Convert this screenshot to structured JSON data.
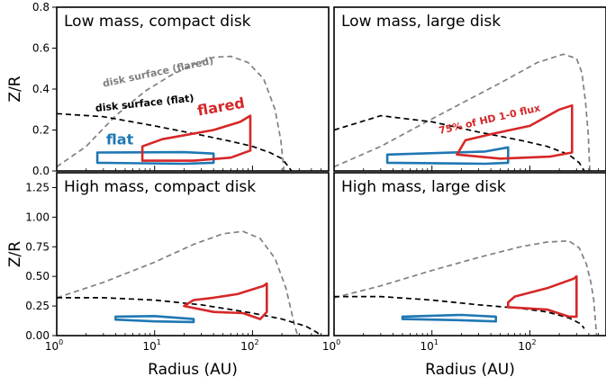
{
  "chart_data": {
    "type": "line",
    "xscale": "log",
    "xlim": [
      1,
      600
    ],
    "xlabel": "Radius (AU)",
    "ylabel": "Z/R",
    "x_ticks": [
      "10",
      "10",
      "10"
    ],
    "x_tick_exponents": [
      "0",
      "1",
      "2"
    ],
    "panels": [
      {
        "title": "Low mass, compact disk",
        "ylim": [
          0,
          0.8
        ],
        "y_ticks": [
          "0.0",
          "0.2",
          "0.4",
          "0.6",
          "0.8"
        ],
        "series": [
          {
            "color": "#808080",
            "dash": true,
            "x": [
              1,
              2,
              4,
              8,
              15,
              25,
              40,
              60,
              90,
              130,
              170,
              195,
              210
            ],
            "y": [
              0.02,
              0.12,
              0.27,
              0.39,
              0.47,
              0.52,
              0.555,
              0.56,
              0.53,
              0.45,
              0.3,
              0.15,
              0.0
            ]
          },
          {
            "color": "#000000",
            "dash": true,
            "x": [
              1,
              3,
              10,
              30,
              60,
              100,
              150,
              200,
              230,
              250
            ],
            "y": [
              0.28,
              0.265,
              0.22,
              0.175,
              0.145,
              0.12,
              0.09,
              0.06,
              0.025,
              0.0
            ]
          },
          {
            "color": "#1f77b4",
            "closed": true,
            "x": [
              2.6,
              20,
              40,
              40,
              20,
              2.6
            ],
            "y": [
              0.09,
              0.092,
              0.085,
              0.04,
              0.035,
              0.04
            ]
          },
          {
            "color": "#d62728",
            "closed": true,
            "x": [
              7.5,
              12,
              40,
              75,
              95,
              95,
              60,
              25,
              7.5
            ],
            "y": [
              0.12,
              0.155,
              0.2,
              0.24,
              0.27,
              0.1,
              0.065,
              0.05,
              0.05
            ]
          }
        ],
        "annotations": [
          {
            "text": "disk surface (flared)",
            "color": "#808080",
            "x": 3.0,
            "y": 0.41,
            "rotation": -12
          },
          {
            "text": "disk surface (flat)",
            "color": "#000000",
            "x": 2.5,
            "y": 0.29,
            "rotation": -6
          },
          {
            "text": "flat",
            "color": "#1f77b4",
            "x": 3.2,
            "y": 0.13,
            "rotation": 0
          },
          {
            "text": "flared",
            "color": "#d62728",
            "x": 28,
            "y": 0.27,
            "rotation": -10
          }
        ]
      },
      {
        "title": "Low mass, large disk",
        "ylim": [
          0,
          0.8
        ],
        "series": [
          {
            "color": "#808080",
            "dash": true,
            "x": [
              1,
              3,
              8,
              20,
              50,
              120,
              220,
              300,
              340,
              370,
              395,
              410
            ],
            "y": [
              0.02,
              0.12,
              0.23,
              0.33,
              0.43,
              0.53,
              0.57,
              0.55,
              0.48,
              0.34,
              0.18,
              0.0
            ]
          },
          {
            "color": "#000000",
            "dash": true,
            "x": [
              1,
              3,
              10,
              30,
              80,
              150,
              250,
              320,
              360
            ],
            "y": [
              0.2,
              0.27,
              0.24,
              0.19,
              0.15,
              0.12,
              0.08,
              0.04,
              0.0
            ]
          },
          {
            "color": "#1f77b4",
            "closed": true,
            "x": [
              3.5,
              35,
              60,
              60,
              35,
              3.5
            ],
            "y": [
              0.08,
              0.095,
              0.115,
              0.04,
              0.035,
              0.04
            ]
          },
          {
            "color": "#d62728",
            "closed": true,
            "x": [
              18,
              22,
              40,
              100,
              200,
              270,
              270,
              160,
              50,
              18
            ],
            "y": [
              0.08,
              0.15,
              0.18,
              0.22,
              0.3,
              0.32,
              0.09,
              0.07,
              0.06,
              0.08
            ]
          }
        ],
        "annotations": [
          {
            "text": "75% of HD 1-0 flux",
            "color": "#d62728",
            "x": 12,
            "y": 0.18,
            "rotation": -13
          }
        ]
      },
      {
        "title": "High mass, compact disk",
        "ylim": [
          0,
          1.375
        ],
        "y_ticks": [
          "0.00",
          "0.25",
          "0.50",
          "0.75",
          "1.00",
          "1.25"
        ],
        "series": [
          {
            "color": "#808080",
            "dash": true,
            "x": [
              1,
              3,
              10,
              25,
              50,
              80,
              120,
              170,
              220,
              250,
              270,
              290
            ],
            "y": [
              0.32,
              0.45,
              0.62,
              0.77,
              0.86,
              0.88,
              0.82,
              0.65,
              0.4,
              0.2,
              0.08,
              0.0
            ]
          },
          {
            "color": "#000000",
            "dash": true,
            "x": [
              1,
              3,
              10,
              30,
              60,
              100,
              200,
              350,
              450,
              500
            ],
            "y": [
              0.32,
              0.32,
              0.3,
              0.26,
              0.22,
              0.19,
              0.14,
              0.08,
              0.03,
              0.0
            ]
          },
          {
            "color": "#1f77b4",
            "closed": true,
            "x": [
              4,
              10,
              25,
              25,
              10,
              4
            ],
            "y": [
              0.16,
              0.165,
              0.14,
              0.115,
              0.12,
              0.135
            ]
          },
          {
            "color": "#d62728",
            "closed": true,
            "x": [
              20,
              25,
              40,
              70,
              130,
              140,
              140,
              120,
              80,
              40,
              20
            ],
            "y": [
              0.25,
              0.3,
              0.32,
              0.35,
              0.42,
              0.44,
              0.2,
              0.14,
              0.19,
              0.2,
              0.25
            ]
          }
        ]
      },
      {
        "title": "High mass, large disk",
        "ylim": [
          0,
          1.375
        ],
        "series": [
          {
            "color": "#808080",
            "dash": true,
            "x": [
              1,
              3,
              10,
              30,
              80,
              150,
              250,
              320,
              380,
              420,
              450,
              470,
              480
            ],
            "y": [
              0.32,
              0.42,
              0.55,
              0.66,
              0.75,
              0.79,
              0.8,
              0.74,
              0.6,
              0.45,
              0.3,
              0.1,
              0.0
            ]
          },
          {
            "color": "#000000",
            "dash": true,
            "x": [
              1,
              3,
              10,
              30,
              80,
              150,
              250,
              330,
              360
            ],
            "y": [
              0.33,
              0.33,
              0.3,
              0.26,
              0.23,
              0.2,
              0.15,
              0.1,
              0.06
            ]
          },
          {
            "color": "#1f77b4",
            "closed": true,
            "x": [
              5,
              20,
              45,
              45,
              20,
              5
            ],
            "y": [
              0.16,
              0.175,
              0.16,
              0.12,
              0.13,
              0.14
            ]
          },
          {
            "color": "#d62728",
            "closed": true,
            "x": [
              60,
              70,
              150,
              280,
              300,
              300,
              250,
              150,
              60
            ],
            "y": [
              0.28,
              0.33,
              0.4,
              0.48,
              0.5,
              0.16,
              0.16,
              0.22,
              0.24
            ]
          }
        ]
      }
    ]
  }
}
